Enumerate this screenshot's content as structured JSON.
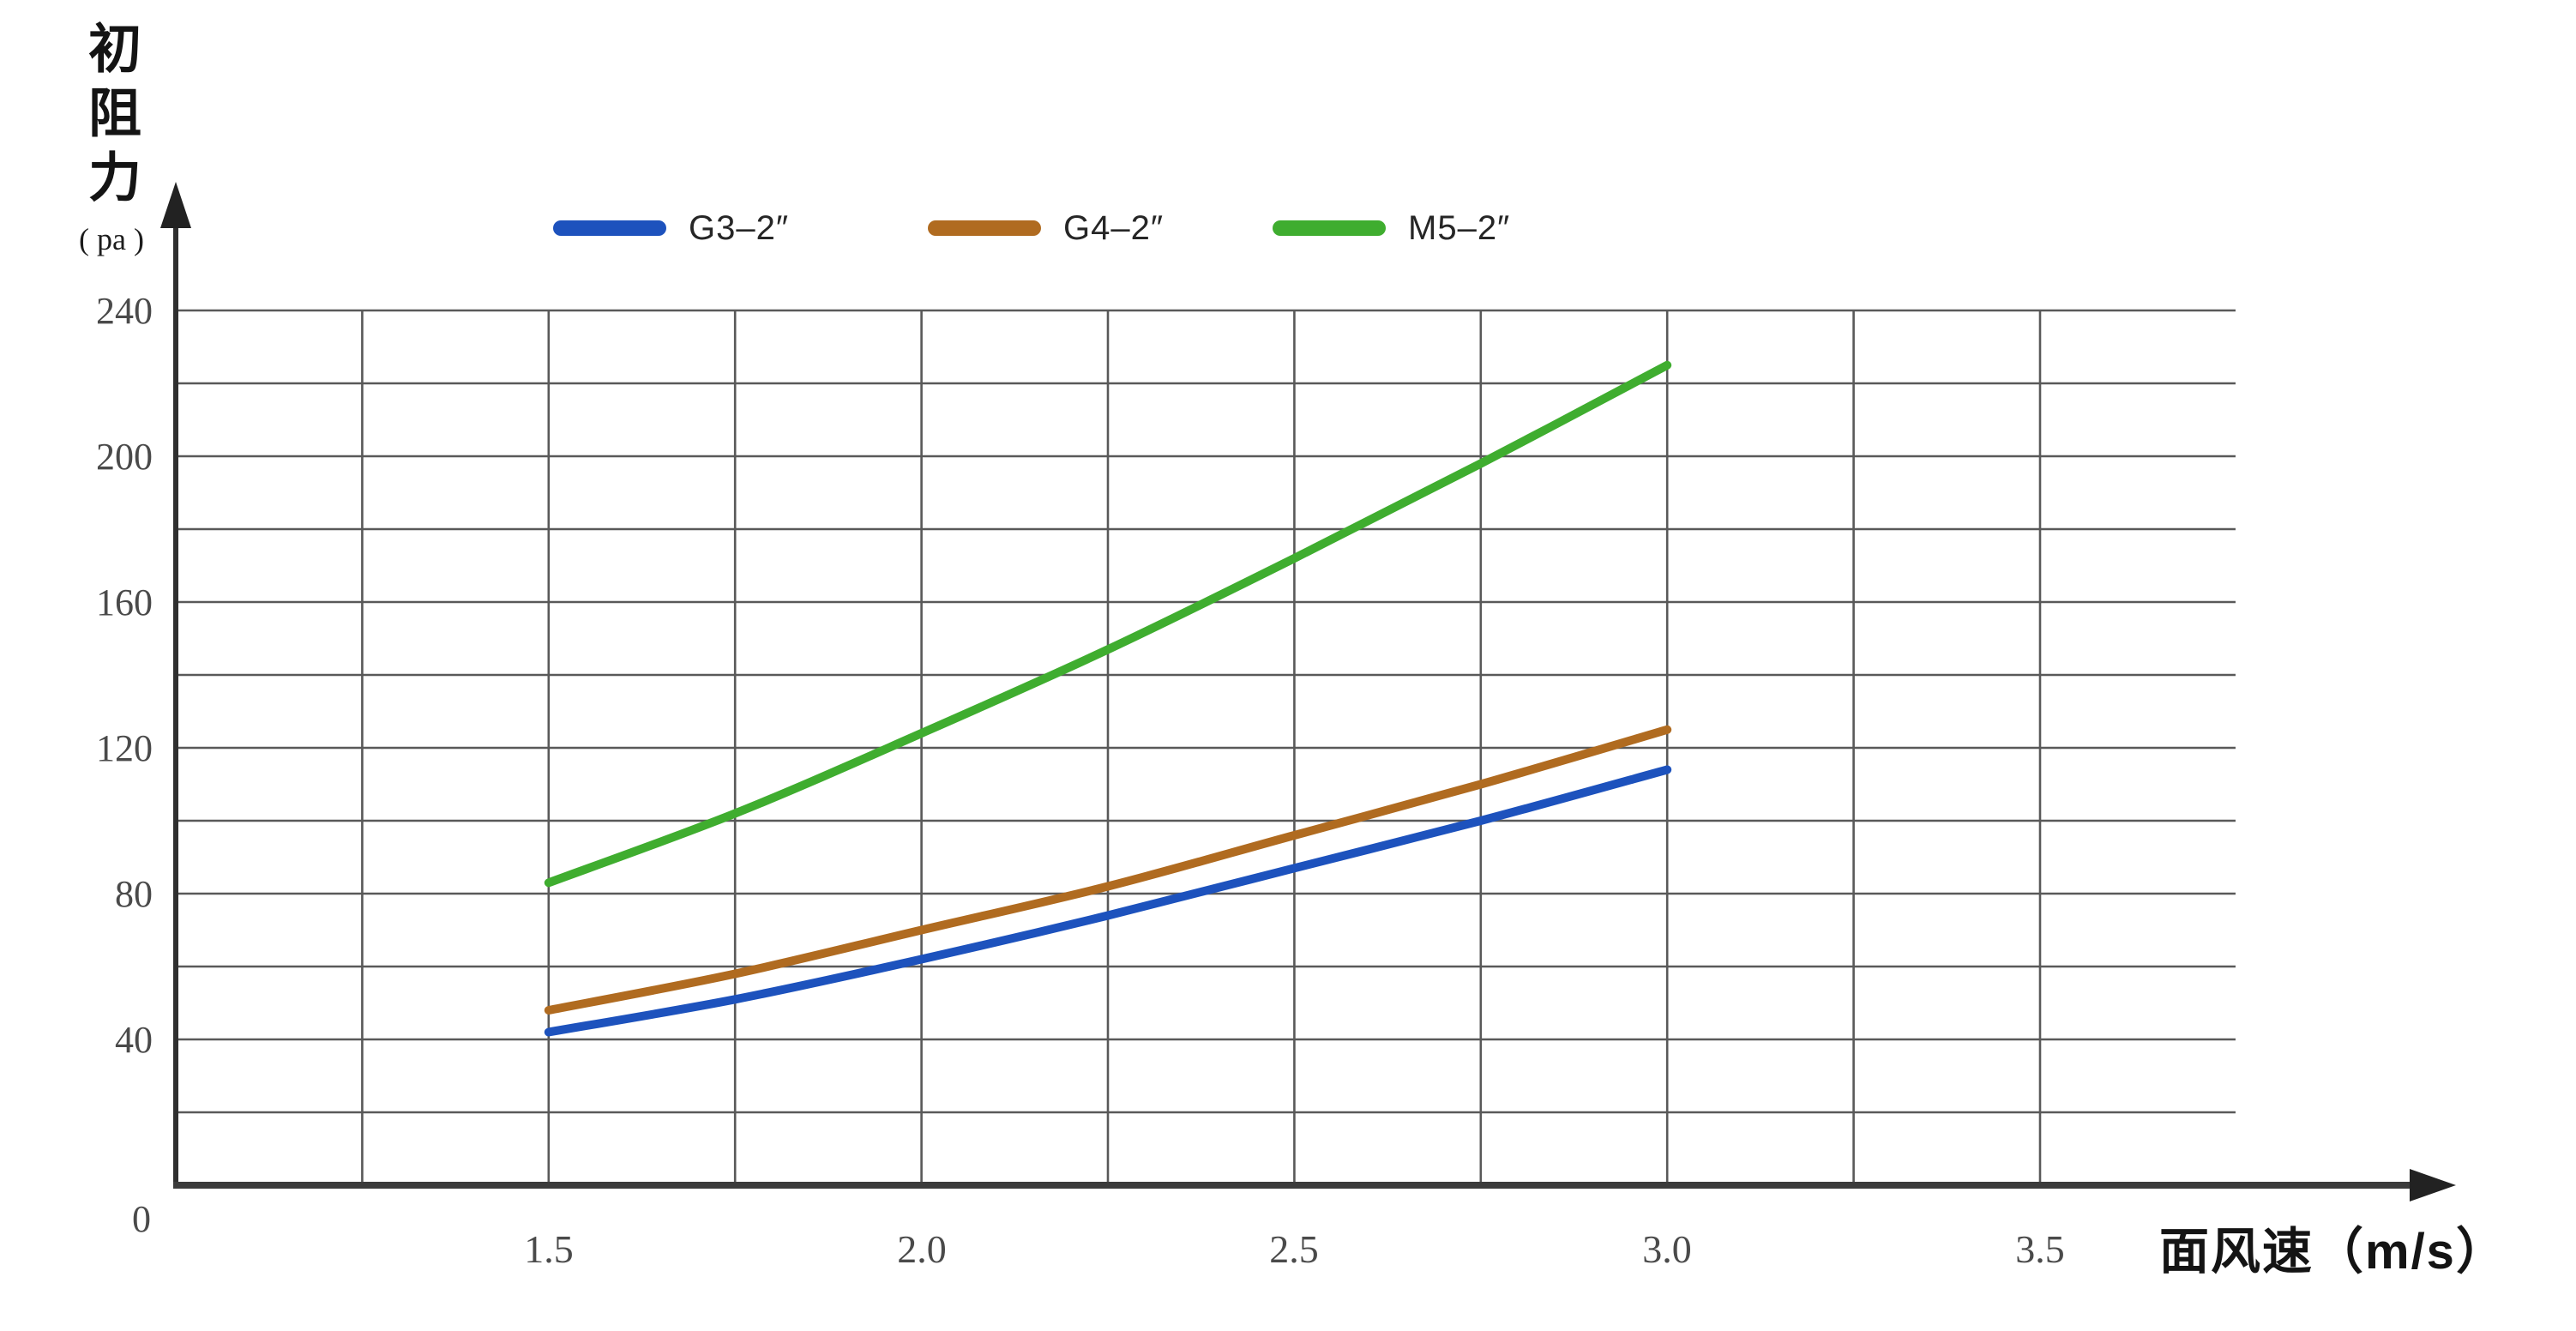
{
  "chart_data": {
    "type": "line",
    "x": [
      1.5,
      1.75,
      2.0,
      2.25,
      2.5,
      2.75,
      3.0
    ],
    "series": [
      {
        "name": "G3–2″",
        "color": "#1d52bd",
        "values": [
          42,
          51,
          62,
          74,
          87,
          100,
          114
        ]
      },
      {
        "name": "G4–2″",
        "color": "#b06b20",
        "values": [
          48,
          58,
          70,
          82,
          96,
          110,
          125
        ]
      },
      {
        "name": "M5–2″",
        "color": "#3fad2f",
        "values": [
          83,
          102,
          124,
          147,
          172,
          198,
          225
        ]
      }
    ],
    "title": "",
    "xlabel": "面风速（m/s）",
    "ylabel": "初阻力",
    "ylabel_unit": "( pa )",
    "x_tick_labels": [
      "1.5",
      "2.0",
      "2.5",
      "3.0",
      "3.5"
    ],
    "x_tick_values": [
      1.5,
      2.0,
      2.5,
      3.0,
      3.5
    ],
    "y_tick_labels": [
      "240",
      "200",
      "160",
      "120",
      "80",
      "40"
    ],
    "y_tick_values": [
      240,
      200,
      160,
      120,
      80,
      40
    ],
    "origin_label": "0",
    "xlim": [
      1.0,
      3.77
    ],
    "ylim": [
      0,
      240
    ],
    "x_grid_step": 0.25,
    "y_grid_step": 20,
    "grid": true,
    "legend_position": "top",
    "colors": {
      "gridline": "#595959",
      "axis": "#333333",
      "tick_text": "#4a4a4a",
      "legend_text": "#262626",
      "background": "#ffffff"
    }
  }
}
